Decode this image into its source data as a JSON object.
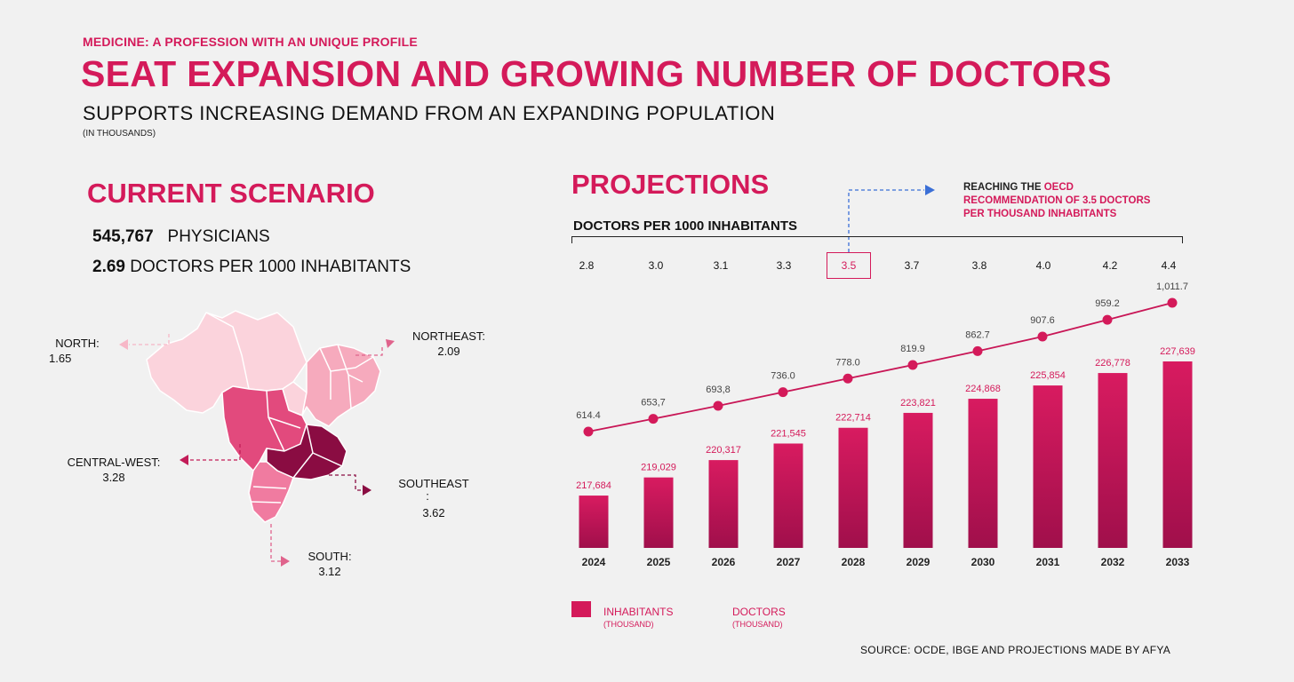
{
  "header": {
    "kicker": "MEDICINE: A PROFESSION WITH AN UNIQUE PROFILE",
    "title": "SEAT EXPANSION AND GROWING NUMBER OF DOCTORS",
    "subtitle": "SUPPORTS INCREASING DEMAND FROM AN EXPANDING POPULATION",
    "unit": "(IN THOUSANDS)"
  },
  "current": {
    "title": "CURRENT SCENARIO",
    "physicians_value": "545,767",
    "physicians_label": "PHYSICIANS",
    "ratio_value": "2.69",
    "ratio_label": "DOCTORS PER 1000 INHABITANTS",
    "regions": {
      "north": {
        "name": "NORTH:",
        "value": "1.65"
      },
      "northeast": {
        "name": "NORTHEAST:",
        "value": "2.09"
      },
      "central_west": {
        "name": "CENTRAL-WEST:",
        "value": "3.28"
      },
      "southeast": {
        "name": "SOUTHEAST",
        "colon": ":",
        "value": "3.62"
      },
      "south": {
        "name": "SOUTH:",
        "value": "3.12"
      }
    }
  },
  "projections": {
    "title": "PROJECTIONS",
    "dpk_title": "DOCTORS PER 1000 INHABITANTS",
    "dpk_values": [
      "2.8",
      "3.0",
      "3.1",
      "3.3",
      "3.5",
      "3.7",
      "3.8",
      "4.0",
      "4.2",
      "4.4"
    ],
    "oecd_prefix": "REACHING THE ",
    "oecd_highlight_1": "OECD",
    "oecd_highlight_2": "RECOMMENDATION OF 3.5 DOCTORS",
    "oecd_highlight_3": "PER THOUSAND INHABITANTS"
  },
  "legend": {
    "inhabitants": "INHABITANTS",
    "inhabitants_unit": "(THOUSAND)",
    "doctors": "DOCTORS",
    "doctors_unit": "(THOUSAND)"
  },
  "source": "SOURCE: OCDE, IBGE AND PROJECTIONS MADE BY AFYA",
  "colors": {
    "accent": "#d41a5a",
    "dark": "#9b0f47",
    "map_light": "#fbd3dc",
    "map_mid": "#f2a1b4",
    "map_darkest": "#8a0c42"
  },
  "chart_data": {
    "type": "bar",
    "categories": [
      "2024",
      "2025",
      "2026",
      "2027",
      "2028",
      "2029",
      "2030",
      "2031",
      "2032",
      "2033"
    ],
    "series": [
      {
        "name": "INHABITANTS",
        "kind": "bar",
        "values": [
          217684,
          219029,
          220317,
          221545,
          222714,
          223821,
          224868,
          225854,
          226778,
          227639
        ],
        "labels": [
          "217,684",
          "219,029",
          "220,317",
          "221,545",
          "222,714",
          "223,821",
          "224,868",
          "225,854",
          "226,778",
          "227,639"
        ]
      },
      {
        "name": "DOCTORS",
        "kind": "line",
        "values": [
          614.4,
          653.7,
          693.8,
          736.0,
          778.0,
          819.9,
          862.7,
          907.6,
          959.2,
          1011.7
        ],
        "labels": [
          "614.4",
          "653,7",
          "693,8",
          "736.0",
          "778.0",
          "819.9",
          "862.7",
          "907.6",
          "959.2",
          "1,011.7"
        ]
      }
    ],
    "bar_ylim": [
      213800,
      227639
    ],
    "line_ylim": [
      614.4,
      1011.7
    ],
    "xlabel": "",
    "ylabel": ""
  }
}
